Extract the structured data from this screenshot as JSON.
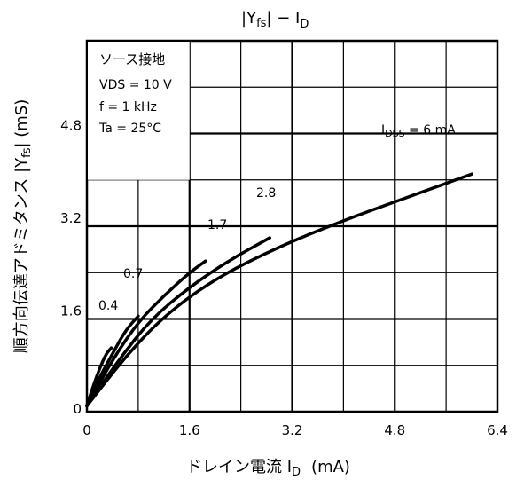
{
  "chart_data": {
    "type": "line",
    "title_main": "|Y",
    "title_sub": "fs",
    "title_tail": "| − I",
    "title_sub2": "D",
    "xlabel_main": "ドレイン電流 I",
    "xlabel_sub": "D",
    "xlabel_unit": "(mA)",
    "ylabel_main": "順方向伝達アドミタンス |Y",
    "ylabel_sub": "fs",
    "ylabel_tail": "| (mS)",
    "xlim": [
      0,
      6.4
    ],
    "ylim": [
      0,
      6.4
    ],
    "x_ticks": [
      0,
      1.6,
      3.2,
      4.8,
      6.4
    ],
    "x_tick_labels": [
      "0",
      "1.6",
      "3.2",
      "4.8",
      "6.4"
    ],
    "y_ticks": [
      0,
      1.6,
      3.2,
      4.8
    ],
    "y_tick_labels": [
      "0",
      "1.6",
      "3.2",
      "4.8"
    ],
    "grid": true,
    "conditions": {
      "line1": "ソース接地",
      "line2": "VDS = 10 V",
      "line3": "f = 1 kHz",
      "line4": "Ta = 25°C"
    },
    "series": [
      {
        "name": "0.4",
        "label": "0.4",
        "x": [
          0.0,
          0.1,
          0.2,
          0.3,
          0.38
        ],
        "y": [
          0.1,
          0.45,
          0.75,
          1.0,
          1.1
        ]
      },
      {
        "name": "0.7",
        "label": "0.7",
        "x": [
          0.0,
          0.2,
          0.4,
          0.6,
          0.8
        ],
        "y": [
          0.1,
          0.6,
          1.0,
          1.4,
          1.65
        ]
      },
      {
        "name": "1.7",
        "label": "1.7",
        "x": [
          0.0,
          0.4,
          0.8,
          1.2,
          1.6,
          1.85
        ],
        "y": [
          0.1,
          0.9,
          1.55,
          2.0,
          2.4,
          2.6
        ]
      },
      {
        "name": "2.8",
        "label": "2.8",
        "x": [
          0.0,
          0.5,
          1.0,
          1.6,
          2.2,
          2.85
        ],
        "y": [
          0.1,
          0.9,
          1.6,
          2.15,
          2.6,
          3.0
        ]
      },
      {
        "name": "IDSS = 6 mA",
        "label": "I",
        "label_sub": "DSS",
        "label_tail": " = 6 mA",
        "x": [
          0.0,
          0.6,
          1.2,
          2.0,
          3.0,
          4.0,
          5.0,
          6.0
        ],
        "y": [
          0.1,
          0.95,
          1.65,
          2.3,
          2.85,
          3.3,
          3.7,
          4.1
        ]
      }
    ]
  }
}
